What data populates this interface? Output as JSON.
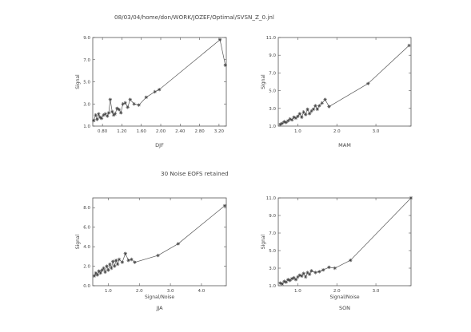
{
  "header": {
    "path_title": "08/03/04/home/don/WORK/JOZEF/Optimal/SVSN_Z_0.jnl",
    "middle_text": "30 Noise EOFS retained"
  },
  "chart_data": [
    {
      "type": "line",
      "title": "DJF",
      "xlabel": "",
      "ylabel": "Signal",
      "xlim": [
        0.6,
        3.35
      ],
      "ylim": [
        1.0,
        9.0
      ],
      "xticks": [
        0.8,
        1.2,
        1.6,
        2.0,
        2.4,
        2.8,
        3.2
      ],
      "xtick_labels": [
        "0.80",
        "1.20",
        "1.60",
        "2.00",
        "2.40",
        "2.80",
        "3.20"
      ],
      "yticks": [
        1.0,
        3.0,
        5.0,
        7.0,
        9.0
      ],
      "ytick_labels": [
        "1.0",
        "3.0",
        "5.0",
        "7.0",
        "9.0"
      ],
      "x": [
        0.62,
        0.66,
        0.69,
        0.72,
        0.75,
        0.78,
        0.82,
        0.86,
        0.9,
        0.93,
        0.96,
        1.0,
        1.03,
        1.06,
        1.1,
        1.14,
        1.18,
        1.22,
        1.27,
        1.32,
        1.37,
        1.45,
        1.55,
        1.7,
        1.88,
        1.97,
        3.22,
        3.33
      ],
      "y": [
        1.5,
        2.0,
        1.6,
        2.1,
        1.8,
        1.7,
        2.0,
        2.1,
        1.9,
        2.2,
        3.4,
        2.3,
        2.0,
        2.1,
        2.6,
        2.5,
        2.2,
        3.0,
        3.1,
        2.7,
        3.4,
        3.0,
        2.9,
        3.6,
        4.1,
        4.3,
        8.8,
        6.5
      ]
    },
    {
      "type": "line",
      "title": "MAM",
      "xlabel": "",
      "ylabel": "Signal",
      "xlim": [
        0.5,
        3.9
      ],
      "ylim": [
        1.0,
        11.0
      ],
      "xticks": [
        1.0,
        2.0,
        3.0
      ],
      "xtick_labels": [
        "1.0",
        "2.0",
        "3.0"
      ],
      "yticks": [
        1.0,
        3.0,
        5.0,
        7.0,
        9.0,
        11.0
      ],
      "ytick_labels": [
        "1.0",
        "3.0",
        "5.0",
        "7.0",
        "9.0",
        "11.0"
      ],
      "x": [
        0.55,
        0.6,
        0.65,
        0.7,
        0.75,
        0.8,
        0.85,
        0.9,
        0.95,
        1.0,
        1.05,
        1.1,
        1.15,
        1.2,
        1.25,
        1.3,
        1.35,
        1.4,
        1.45,
        1.5,
        1.55,
        1.62,
        1.7,
        1.8,
        2.8,
        3.85
      ],
      "y": [
        1.2,
        1.3,
        1.5,
        1.4,
        1.6,
        1.8,
        1.7,
        2.0,
        1.9,
        2.1,
        2.4,
        2.0,
        2.6,
        2.3,
        2.9,
        2.4,
        2.7,
        2.9,
        3.3,
        2.9,
        3.3,
        3.6,
        4.0,
        3.2,
        5.8,
        10.1
      ]
    },
    {
      "type": "line",
      "title": "JJA",
      "xlabel": "Signal/Noise",
      "ylabel": "Signal",
      "xlim": [
        0.5,
        4.8
      ],
      "ylim": [
        0.0,
        9.0
      ],
      "xticks": [
        1.0,
        2.0,
        3.0,
        4.0
      ],
      "xtick_labels": [
        "1.0",
        "2.0",
        "3.0",
        "4.0"
      ],
      "yticks": [
        0.0,
        2.0,
        4.0,
        6.0,
        8.0
      ],
      "ytick_labels": [
        "0.0",
        "2.0",
        "4.0",
        "6.0",
        "8.0"
      ],
      "x": [
        0.55,
        0.6,
        0.65,
        0.7,
        0.75,
        0.8,
        0.85,
        0.9,
        0.95,
        1.0,
        1.05,
        1.1,
        1.15,
        1.2,
        1.25,
        1.3,
        1.35,
        1.45,
        1.55,
        1.65,
        1.75,
        1.85,
        2.6,
        3.25,
        4.75
      ],
      "y": [
        1.0,
        1.3,
        1.1,
        1.5,
        1.3,
        1.6,
        1.8,
        1.4,
        2.0,
        1.6,
        2.2,
        1.8,
        2.5,
        2.0,
        2.6,
        2.2,
        2.7,
        2.4,
        3.3,
        2.6,
        2.7,
        2.4,
        3.1,
        4.3,
        8.2
      ]
    },
    {
      "type": "line",
      "title": "SON",
      "xlabel": "Signal/Noise",
      "ylabel": "Signal",
      "xlim": [
        0.5,
        3.9
      ],
      "ylim": [
        1.0,
        11.0
      ],
      "xticks": [
        1.0,
        2.0,
        3.0
      ],
      "xtick_labels": [
        "1.0",
        "2.0",
        "3.0"
      ],
      "yticks": [
        1.0,
        3.0,
        5.0,
        7.0,
        9.0,
        11.0
      ],
      "ytick_labels": [
        "1.0",
        "3.0",
        "5.0",
        "7.0",
        "9.0",
        "11.0"
      ],
      "x": [
        0.55,
        0.6,
        0.65,
        0.7,
        0.75,
        0.8,
        0.85,
        0.9,
        0.95,
        1.0,
        1.05,
        1.1,
        1.15,
        1.2,
        1.25,
        1.3,
        1.35,
        1.45,
        1.55,
        1.65,
        1.8,
        1.95,
        2.35,
        3.9
      ],
      "y": [
        1.3,
        1.2,
        1.5,
        1.4,
        1.7,
        1.6,
        1.8,
        1.9,
        1.7,
        2.0,
        2.2,
        2.1,
        2.4,
        2.0,
        2.5,
        2.3,
        2.7,
        2.5,
        2.6,
        2.8,
        3.1,
        3.0,
        3.9,
        11.0
      ]
    }
  ]
}
